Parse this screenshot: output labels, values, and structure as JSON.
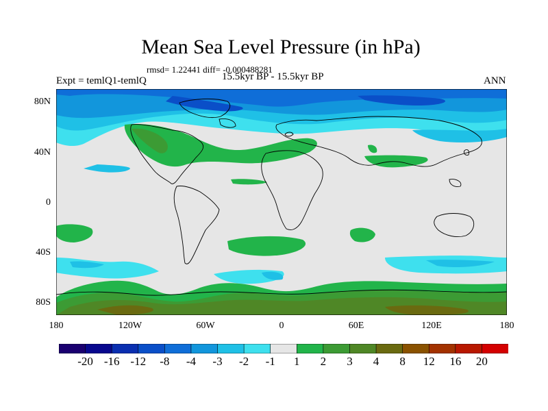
{
  "title": "Mean Sea Level Pressure (in hPa)",
  "stats": "rmsd= 1.22441 diff= -0.000488281",
  "experiment": "Expt = temlQ1-temlQ",
  "period": "15.5kyr BP - 15.5kyr BP",
  "season": "ANN",
  "y_axis_labels": [
    "80N",
    "40N",
    "0",
    "40S",
    "80S"
  ],
  "x_axis_labels": [
    "180",
    "120W",
    "60W",
    "0",
    "60E",
    "120E",
    "180"
  ],
  "colorbar": {
    "labels": [
      "-20",
      "-16",
      "-12",
      "-8",
      "-4",
      "-3",
      "-2",
      "-1",
      "1",
      "2",
      "3",
      "4",
      "8",
      "12",
      "16",
      "20"
    ],
    "colors": [
      "#1a0070",
      "#08088e",
      "#0a2fb0",
      "#0a4fc8",
      "#0f6ed8",
      "#1296dc",
      "#1fc0e6",
      "#3ee0ee",
      "#e6e6e6",
      "#22b44a",
      "#3c9b34",
      "#4f8726",
      "#6a6a10",
      "#8a5200",
      "#a33200",
      "#b81800",
      "#d40000"
    ]
  },
  "colors": {
    "ocean_neutral": "#e6e6e6",
    "coastline": "#000000",
    "frame": "#000000"
  }
}
